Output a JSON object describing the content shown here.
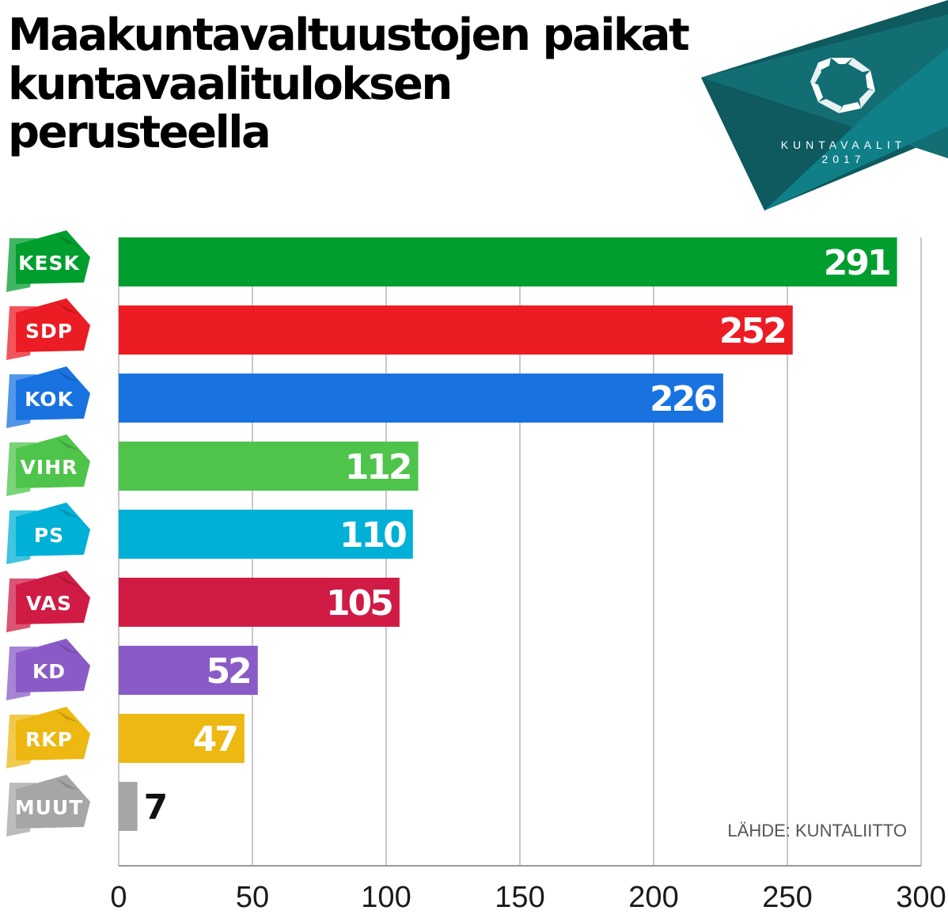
{
  "title": "Maakuntavaltuustojen paikat kuntavaalituloksen perusteella",
  "logo": {
    "line1": "KUNTAVAALIT",
    "line2": "2017",
    "colors": [
      "#0e5a5e",
      "#126e73",
      "#0f7f88"
    ]
  },
  "source": "LÄHDE: KUNTALIITTO",
  "chart_data": {
    "type": "bar",
    "orientation": "horizontal",
    "title": "Maakuntavaltuustojen paikat kuntavaalituloksen perusteella",
    "categories": [
      "KESK",
      "SDP",
      "KOK",
      "VIHR",
      "PS",
      "VAS",
      "KD",
      "RKP",
      "MUUT"
    ],
    "values": [
      291,
      252,
      226,
      112,
      110,
      105,
      52,
      47,
      7
    ],
    "colors": [
      "#009e2e",
      "#ec1c24",
      "#1873e1",
      "#4ec44b",
      "#00b0d6",
      "#d01b45",
      "#8a5bc6",
      "#ecb811",
      "#a6a6a6"
    ],
    "xlim": [
      0,
      300
    ],
    "xticks": [
      "0",
      "50",
      "100",
      "150",
      "200",
      "250",
      "300"
    ],
    "grid": true,
    "xlabel": "",
    "ylabel": ""
  }
}
